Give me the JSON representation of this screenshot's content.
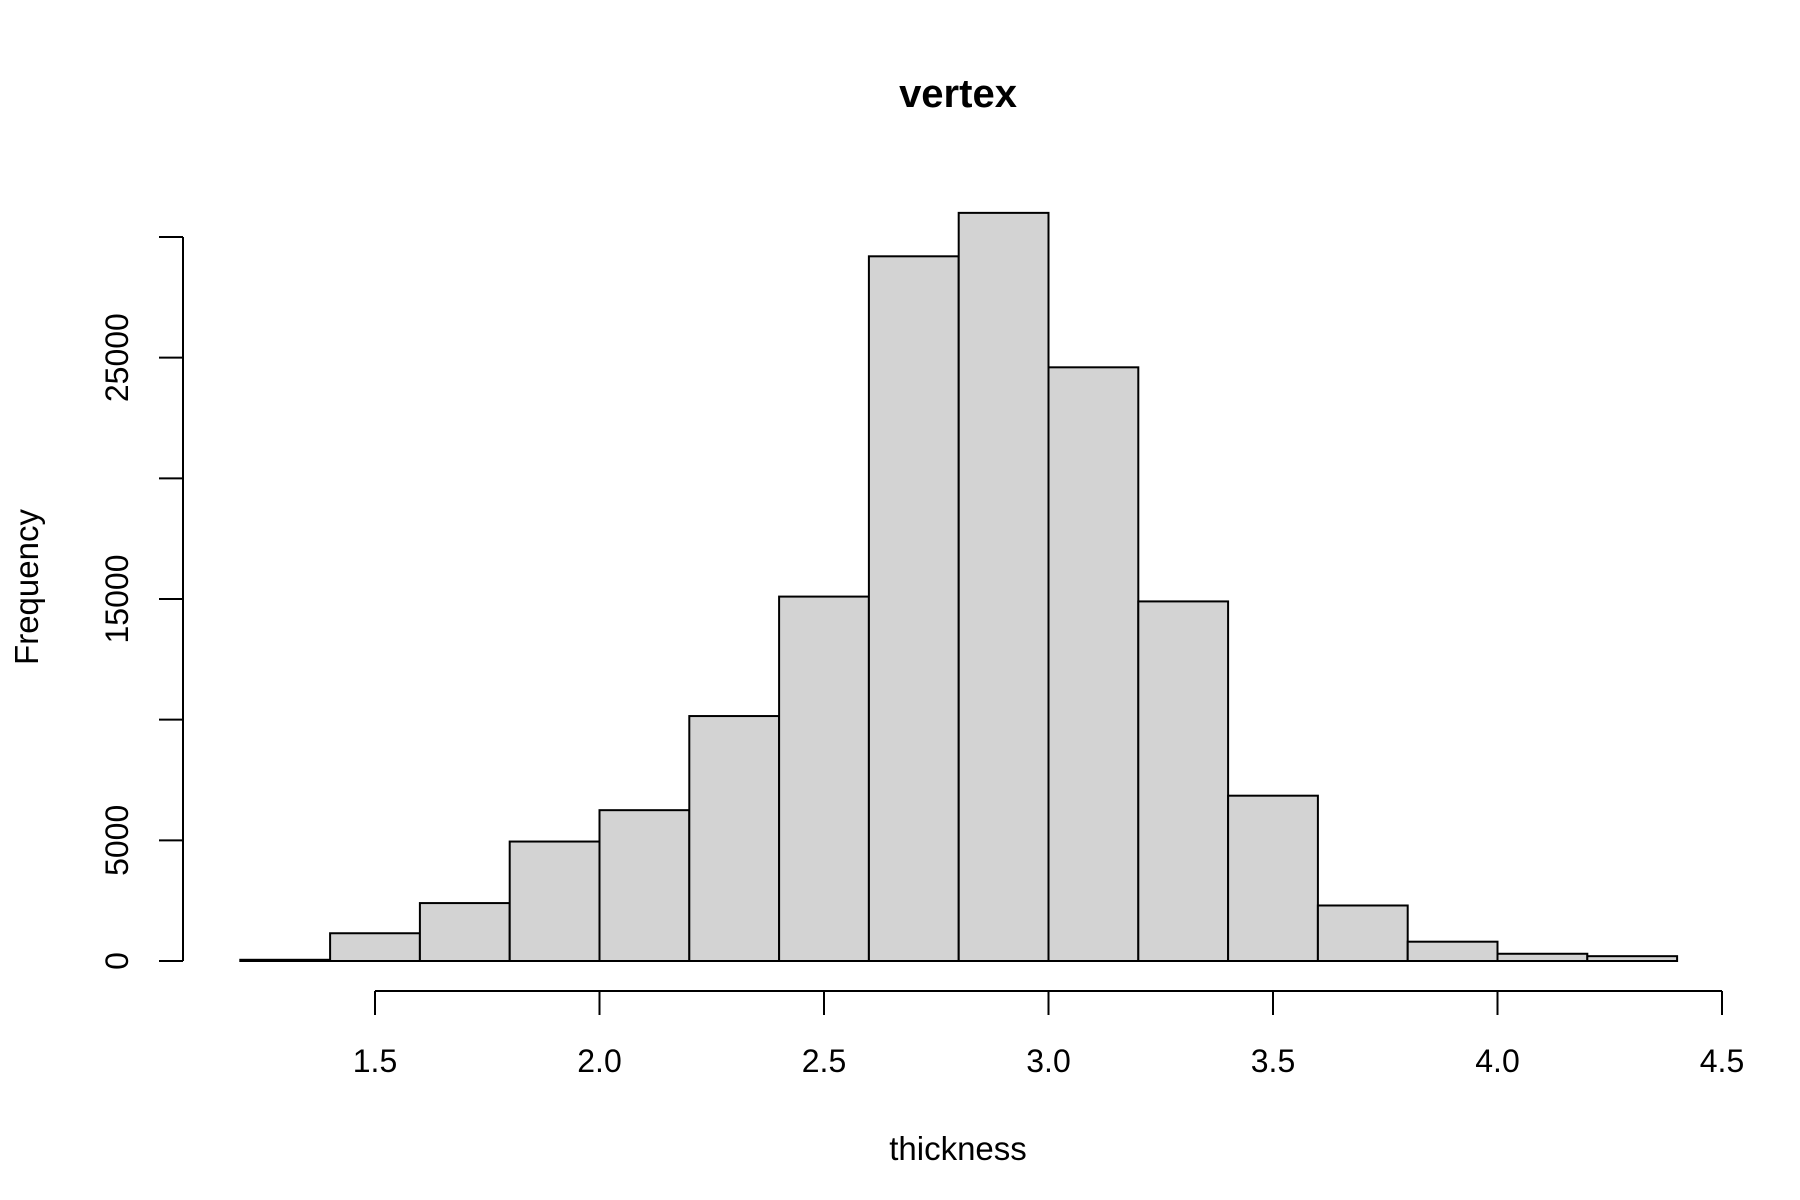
{
  "chart_data": {
    "type": "bar",
    "title": "vertex",
    "xlabel": "thickness",
    "ylabel": "Frequency",
    "bin_edges": [
      1.2,
      1.4,
      1.6,
      1.8,
      2.0,
      2.2,
      2.4,
      2.6,
      2.8,
      3.0,
      3.2,
      3.4,
      3.6,
      3.8,
      4.0,
      4.2,
      4.4
    ],
    "values": [
      50,
      1150,
      2400,
      4950,
      6250,
      10150,
      15100,
      29200,
      31000,
      24600,
      14900,
      6850,
      2300,
      800,
      300,
      200
    ],
    "xlim": [
      1.2,
      4.5
    ],
    "ylim": [
      0,
      31000
    ],
    "xticks": [
      1.5,
      2.0,
      2.5,
      3.0,
      3.5,
      4.0,
      4.5
    ],
    "xtick_labels": [
      "1.5",
      "2.0",
      "2.5",
      "3.0",
      "3.5",
      "4.0",
      "4.5"
    ],
    "yticks": [
      0,
      5000,
      10000,
      15000,
      20000,
      25000,
      30000
    ],
    "ytick_labels": [
      "0",
      "5000",
      "",
      "15000",
      "",
      "25000",
      ""
    ],
    "grid": false,
    "colors": {
      "bar_fill": "#d3d3d3",
      "bar_stroke": "#000000",
      "background": "#ffffff"
    }
  }
}
